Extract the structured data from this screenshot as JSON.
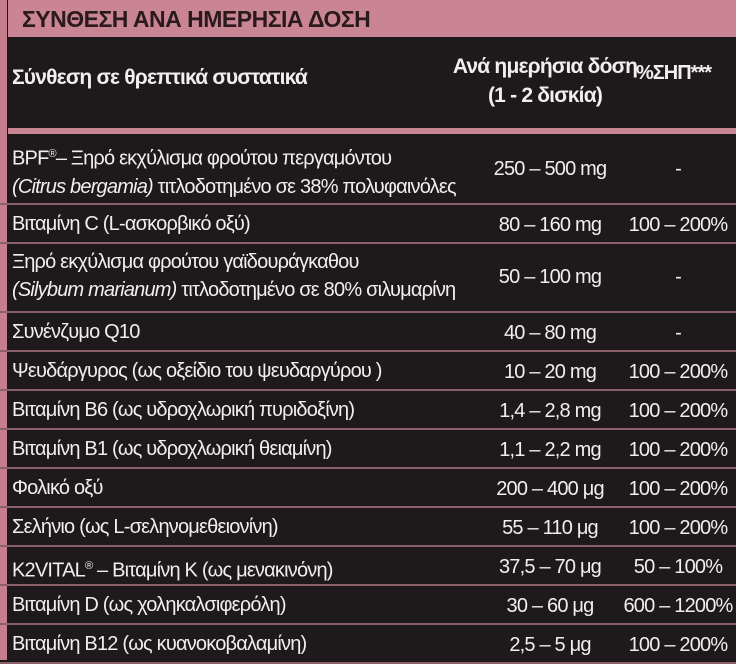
{
  "title": "ΣΥΝΘΕΣΗ ΑΝΑ ΗΜΕΡΗΣΙΑ ΔΟΣΗ",
  "header": {
    "ingredients": "Σύνθεση σε θρεπτικά συστατικά",
    "dose_line1": "Ανά ημερήσια δόση",
    "dose_line2": "(1 - 2 δισκία)",
    "pct": "%ΣΗΠ***"
  },
  "colors": {
    "accent": "#c98593",
    "background": "#1e1a1b",
    "text": "#f2eef0"
  },
  "rows": [
    {
      "line1": "BPF",
      "line1_sup": "®",
      "line1_rest": "– Ξηρό εκχύλισμα φρούτου περγαμόντου",
      "italic": "(Citrus bergamia)",
      "line2_rest": " τιτλοδοτημένο σε 38% πολυφαινόλες",
      "dose": "250 – 500 mg",
      "pct": "-"
    },
    {
      "name": "Βιταμίνη C (L-ασκορβικό οξύ)",
      "dose": "80 – 160 mg",
      "pct": "100 – 200%"
    },
    {
      "line1": "Ξηρό εκχύλισμα φρούτου γαϊδουράγκαθου",
      "italic": "(Silybum marianum)",
      "line2_rest": " τιτλοδοτημένο σε 80% σιλυμαρίνη",
      "dose": "50 – 100 mg",
      "pct": "-"
    },
    {
      "name": "Συνένζυμο Q10",
      "dose": "40 – 80 mg",
      "pct": "-"
    },
    {
      "name": "Ψευδάργυρος (ως οξείδιο του ψευδαργύρου )",
      "dose": "10 – 20 mg",
      "pct": "100 – 200%"
    },
    {
      "name": "Βιταμίνη B6 (ως υδροχλωρική πυριδοξίνη)",
      "dose": "1,4 – 2,8 mg",
      "pct": "100 – 200%"
    },
    {
      "name": "Βιταμίνη B1 (ως υδροχλωρική θειαμίνη)",
      "dose": "1,1 – 2,2 mg",
      "pct": "100 – 200%"
    },
    {
      "name": "Φολικό οξύ",
      "dose": "200 – 400 μg",
      "pct": "100 – 200%"
    },
    {
      "name": "Σελήνιο (ως L-σεληνομεθειονίνη)",
      "dose": "55 – 110 μg",
      "pct": "100 – 200%"
    },
    {
      "name": "K2VITAL",
      "name_sup": "®",
      "name_rest": " – Βιταμίνη K (ως μενακινόνη)",
      "dose": "37,5 – 70 μg",
      "pct": "50 – 100%"
    },
    {
      "name": "Βιταμίνη D (ως χοληκαλσιφερόλη)",
      "dose": "30 – 60 μg",
      "pct": "600 – 1200%"
    },
    {
      "name": "Βιταμίνη B12 (ως κυανοκοβαλαμίνη)",
      "dose": "2,5 – 5 μg",
      "pct": "100 – 200%"
    }
  ]
}
